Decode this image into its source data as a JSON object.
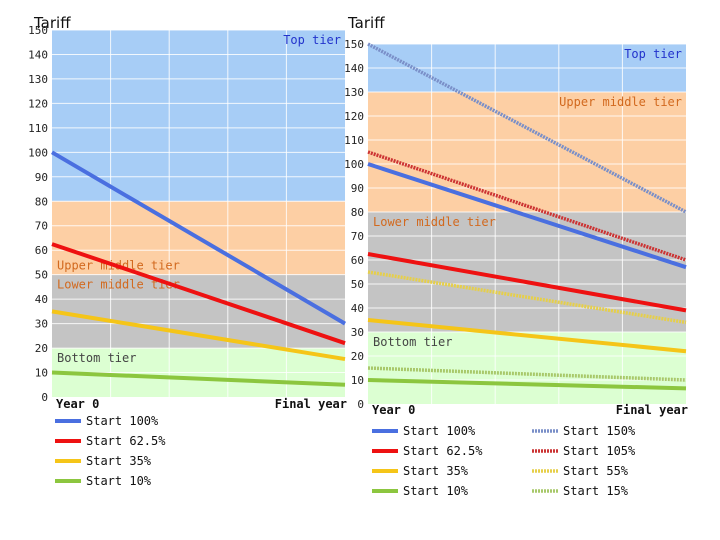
{
  "chart_data": [
    {
      "type": "line",
      "title": "Tariff",
      "ylim": [
        0,
        150
      ],
      "yticks": [
        0,
        10,
        20,
        30,
        40,
        50,
        60,
        70,
        80,
        90,
        100,
        110,
        120,
        130,
        140,
        150
      ],
      "x": [
        "Year 0",
        "Final year"
      ],
      "bands": [
        {
          "name": "Top tier",
          "range": [
            80,
            150
          ],
          "fill": "#a7cdf6",
          "label_color": "#2233cc"
        },
        {
          "name": "Upper middle tier",
          "range": [
            50,
            80
          ],
          "fill": "#fdcfa4",
          "label_color": "#d2691e"
        },
        {
          "name": "Lower middle tier",
          "range": [
            20,
            50
          ],
          "fill": "#c4c4c4",
          "label_color": "#d2691e"
        },
        {
          "name": "Bottom tier",
          "range": [
            0,
            20
          ],
          "fill": "#dcffd2",
          "label_color": "#444444"
        }
      ],
      "series": [
        {
          "name": "Start 100%",
          "values": [
            100,
            30
          ],
          "color": "#4a6fe0",
          "style": "solid"
        },
        {
          "name": "Start 62.5%",
          "values": [
            62.5,
            22
          ],
          "color": "#ee1111",
          "style": "solid"
        },
        {
          "name": "Start 35%",
          "values": [
            35,
            15.5
          ],
          "color": "#f5c518",
          "style": "solid"
        },
        {
          "name": "Start 10%",
          "values": [
            10,
            5
          ],
          "color": "#8cc63f",
          "style": "solid"
        }
      ]
    },
    {
      "type": "line",
      "title": "Tariff",
      "ylim": [
        0,
        150
      ],
      "yticks": [
        0,
        10,
        20,
        30,
        40,
        50,
        60,
        70,
        80,
        90,
        100,
        110,
        120,
        130,
        140,
        150
      ],
      "x": [
        "Year 0",
        "Final year"
      ],
      "bands": [
        {
          "name": "Top tier",
          "range": [
            130,
            150
          ],
          "fill": "#a7cdf6",
          "label_color": "#2233cc"
        },
        {
          "name": "Upper middle tier",
          "range": [
            80,
            130
          ],
          "fill": "#fdcfa4",
          "label_color": "#d2691e"
        },
        {
          "name": "Lower middle tier",
          "range": [
            30,
            80
          ],
          "fill": "#c4c4c4",
          "label_color": "#d2691e"
        },
        {
          "name": "Bottom tier",
          "range": [
            0,
            30
          ],
          "fill": "#dcffd2",
          "label_color": "#444444"
        }
      ],
      "series": [
        {
          "name": "Start 100%",
          "values": [
            100,
            57
          ],
          "color": "#4a6fe0",
          "style": "solid"
        },
        {
          "name": "Start 62.5%",
          "values": [
            62.5,
            39
          ],
          "color": "#ee1111",
          "style": "solid"
        },
        {
          "name": "Start 35%",
          "values": [
            35,
            22
          ],
          "color": "#f5c518",
          "style": "solid"
        },
        {
          "name": "Start 10%",
          "values": [
            10,
            6.5
          ],
          "color": "#8cc63f",
          "style": "solid"
        },
        {
          "name": "Start 150%",
          "values": [
            150,
            80
          ],
          "color": "#7a8fc8",
          "style": "dotted"
        },
        {
          "name": "Start 105%",
          "values": [
            105,
            60
          ],
          "color": "#cc3333",
          "style": "dotted"
        },
        {
          "name": "Start 55%",
          "values": [
            55,
            34
          ],
          "color": "#e6cf4a",
          "style": "dotted"
        },
        {
          "name": "Start 15%",
          "values": [
            15,
            10
          ],
          "color": "#a8c86a",
          "style": "dotted"
        }
      ]
    }
  ]
}
